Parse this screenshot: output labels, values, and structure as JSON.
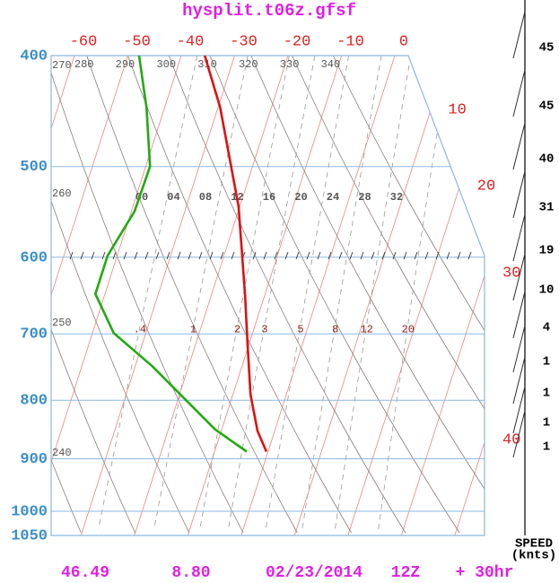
{
  "chart_data": {
    "type": "skewt",
    "title": "hysplit.t06z.gfsf",
    "ylim": [
      400,
      1050
    ],
    "yticks": [
      400,
      500,
      600,
      700,
      800,
      900,
      1000,
      1050
    ],
    "xlim": [
      -60,
      0
    ],
    "xticks": [
      -60,
      -50,
      -40,
      -30,
      -20,
      -10,
      0,
      10,
      20,
      30,
      40
    ],
    "log_y": true,
    "grid": true,
    "isentropes": [
      240,
      250,
      260,
      270,
      280,
      290,
      300,
      310,
      320,
      330,
      340
    ],
    "mixing_ratios": [
      {
        "value": 0.4,
        "label": ".4"
      },
      1,
      2,
      3,
      5,
      8,
      12,
      20
    ],
    "moist_labels": [
      "00",
      "04",
      "08",
      "12",
      "16",
      "20",
      "24",
      "28",
      "32"
    ],
    "series": [
      {
        "color": "#dd1111",
        "x": [
          -0.3,
          -3.2,
          -6.7,
          -10.5,
          -13.6,
          -16.6,
          -20.2,
          -24.0,
          -29.6,
          -35.6
        ],
        "y": [
          887,
          851,
          791,
          710,
          649,
          598,
          542,
          500,
          444,
          400
        ]
      },
      {
        "color": "#22aa11",
        "x": [
          -4.0,
          -11.3,
          -26.8,
          -36.0,
          -41.8,
          -41.8,
          -39.4,
          -39.2,
          -43.4,
          -47.9
        ],
        "y": [
          887,
          848,
          747,
          699,
          646,
          598,
          547,
          500,
          444,
          400
        ]
      }
    ],
    "wind": {
      "label": "SPEED",
      "units": "(knts)",
      "speeds": [
        45,
        45,
        40,
        31,
        19,
        10,
        4,
        1,
        1,
        1,
        1
      ]
    },
    "footer": [
      "46.49",
      "8.80",
      "02/23/2014",
      "12Z",
      "+ 30hr"
    ]
  }
}
